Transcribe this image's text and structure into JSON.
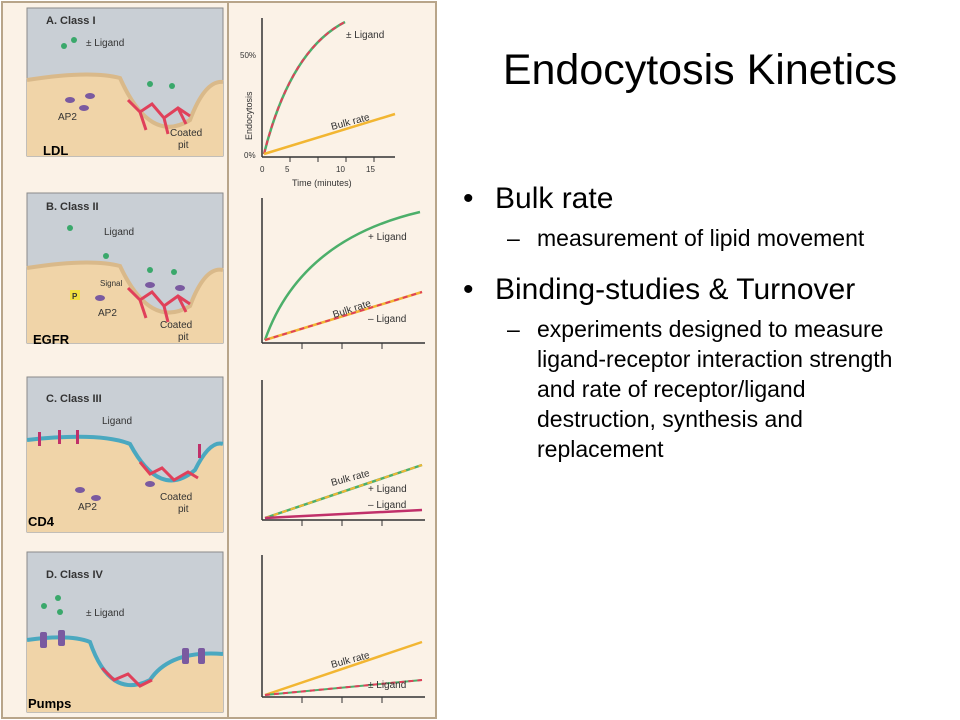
{
  "slide": {
    "title": "Endocytosis Kinetics",
    "bullets": [
      {
        "text": "Bulk rate",
        "sub": "measurement of lipid movement"
      },
      {
        "text": "Binding-studies & Turnover",
        "sub": "experiments designed to measure ligand-receptor interaction strength and rate of receptor/ligand destruction, synthesis and replacement"
      }
    ]
  },
  "figure": {
    "panels": [
      {
        "heading": "A. Class I",
        "ligand": "± Ligand",
        "tags": [
          "AP2",
          "Coated",
          "pit"
        ],
        "receptor": "LDL",
        "graph": {
          "ylabel": "Endocytosis",
          "y_top": "50%",
          "y_bottom": "0%",
          "xticks": [
            "0",
            "5",
            "10",
            "15"
          ],
          "xlabel": "Time (minutes)",
          "labels": [
            "± Ligand",
            "Bulk rate"
          ]
        }
      },
      {
        "heading": "B. Class II",
        "ligand": "Ligand",
        "tags": [
          "Signal",
          "AP2",
          "P",
          "Coated",
          "pit"
        ],
        "receptor": "EGFR",
        "graph": {
          "labels": [
            "+ Ligand",
            "Bulk rate",
            "– Ligand"
          ]
        }
      },
      {
        "heading": "C. Class III",
        "ligand": "Ligand",
        "tags": [
          "AP2",
          "Coated",
          "pit"
        ],
        "receptor": "CD4",
        "graph": {
          "labels": [
            "Bulk rate",
            "+ Ligand",
            "– Ligand"
          ]
        }
      },
      {
        "heading": "D. Class IV",
        "ligand": "± Ligand",
        "tags": [],
        "receptor": "Pumps",
        "graph": {
          "labels": [
            "Bulk rate",
            "± Ligand"
          ]
        }
      }
    ]
  },
  "colors": {
    "panel_bg": "#c9cfd5",
    "cytoplasm": "#f0d4a8",
    "membrane": "#f5e0bd",
    "clathrin": "#e0405a",
    "bulk": "#f2b632",
    "green_curve": "#4caf6a",
    "ligand": "#3aa86b",
    "receptor": "#c0306a"
  }
}
